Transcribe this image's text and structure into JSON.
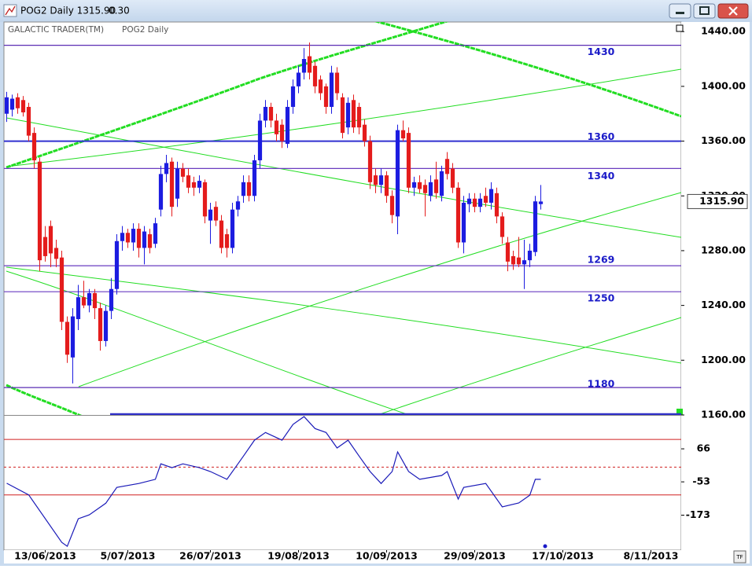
{
  "window": {
    "title": "POG2 Daily 1315.90",
    "change": "0.30"
  },
  "chart_data": {
    "type": "candlestick",
    "header": "GALACTIC TRADER(TM)",
    "symbol": "POG2 Daily",
    "last_price": {
      "value": 1315.9,
      "label": "1315.90"
    },
    "up_color": "#1c1ce0",
    "down_color": "#e41c1c",
    "candles": [
      [
        1380,
        1396,
        1374,
        1392
      ],
      [
        1383,
        1394,
        1378,
        1391
      ],
      [
        1392,
        1395,
        1380,
        1384
      ],
      [
        1390,
        1393,
        1378,
        1381
      ],
      [
        1385,
        1388,
        1360,
        1364
      ],
      [
        1366,
        1370,
        1340,
        1346
      ],
      [
        1345,
        1348,
        1265,
        1273
      ],
      [
        1290,
        1298,
        1272,
        1276
      ],
      [
        1298,
        1302,
        1268,
        1278
      ],
      [
        1282,
        1288,
        1268,
        1274
      ],
      [
        1275,
        1280,
        1222,
        1228
      ],
      [
        1228,
        1232,
        1198,
        1204
      ],
      [
        1202,
        1238,
        1183,
        1232
      ],
      [
        1230,
        1255,
        1222,
        1246
      ],
      [
        1246,
        1258,
        1238,
        1240
      ],
      [
        1240,
        1252,
        1235,
        1249
      ],
      [
        1249,
        1252,
        1230,
        1238
      ],
      [
        1238,
        1242,
        1207,
        1214
      ],
      [
        1214,
        1240,
        1210,
        1236
      ],
      [
        1236,
        1260,
        1230,
        1252
      ],
      [
        1252,
        1292,
        1248,
        1287
      ],
      [
        1287,
        1298,
        1280,
        1293
      ],
      [
        1293,
        1296,
        1282,
        1286
      ],
      [
        1286,
        1300,
        1280,
        1296
      ],
      [
        1296,
        1300,
        1275,
        1282
      ],
      [
        1282,
        1298,
        1270,
        1294
      ],
      [
        1292,
        1296,
        1278,
        1282
      ],
      [
        1285,
        1304,
        1282,
        1300
      ],
      [
        1310,
        1342,
        1305,
        1336
      ],
      [
        1336,
        1350,
        1330,
        1344
      ],
      [
        1345,
        1348,
        1305,
        1312
      ],
      [
        1318,
        1345,
        1312,
        1340
      ],
      [
        1340,
        1344,
        1330,
        1334
      ],
      [
        1335,
        1340,
        1322,
        1326
      ],
      [
        1330,
        1334,
        1320,
        1326
      ],
      [
        1326,
        1335,
        1322,
        1331
      ],
      [
        1330,
        1332,
        1300,
        1305
      ],
      [
        1302,
        1315,
        1285,
        1310
      ],
      [
        1312,
        1316,
        1298,
        1302
      ],
      [
        1302,
        1306,
        1278,
        1282
      ],
      [
        1292,
        1296,
        1275,
        1282
      ],
      [
        1282,
        1315,
        1278,
        1310
      ],
      [
        1310,
        1320,
        1305,
        1316
      ],
      [
        1320,
        1335,
        1315,
        1330
      ],
      [
        1330,
        1335,
        1316,
        1320
      ],
      [
        1320,
        1350,
        1316,
        1346
      ],
      [
        1346,
        1380,
        1340,
        1375
      ],
      [
        1375,
        1390,
        1370,
        1385
      ],
      [
        1385,
        1388,
        1370,
        1375
      ],
      [
        1375,
        1380,
        1360,
        1365
      ],
      [
        1372,
        1376,
        1355,
        1360
      ],
      [
        1358,
        1390,
        1355,
        1385
      ],
      [
        1385,
        1405,
        1380,
        1400
      ],
      [
        1400,
        1415,
        1395,
        1410
      ],
      [
        1410,
        1428,
        1405,
        1420
      ],
      [
        1422,
        1432,
        1405,
        1410
      ],
      [
        1415,
        1418,
        1395,
        1400
      ],
      [
        1405,
        1408,
        1390,
        1395
      ],
      [
        1400,
        1402,
        1380,
        1385
      ],
      [
        1385,
        1415,
        1380,
        1410
      ],
      [
        1410,
        1414,
        1390,
        1395
      ],
      [
        1392,
        1395,
        1362,
        1366
      ],
      [
        1370,
        1392,
        1365,
        1388
      ],
      [
        1390,
        1394,
        1366,
        1370
      ],
      [
        1385,
        1388,
        1365,
        1370
      ],
      [
        1372,
        1376,
        1356,
        1360
      ],
      [
        1360,
        1364,
        1325,
        1330
      ],
      [
        1335,
        1340,
        1322,
        1328
      ],
      [
        1328,
        1340,
        1322,
        1335
      ],
      [
        1335,
        1338,
        1315,
        1320
      ],
      [
        1320,
        1324,
        1300,
        1306
      ],
      [
        1305,
        1372,
        1292,
        1368
      ],
      [
        1368,
        1375,
        1360,
        1362
      ],
      [
        1366,
        1370,
        1322,
        1326
      ],
      [
        1326,
        1334,
        1320,
        1330
      ],
      [
        1330,
        1335,
        1322,
        1325
      ],
      [
        1328,
        1332,
        1305,
        1322
      ],
      [
        1320,
        1335,
        1316,
        1330
      ],
      [
        1332,
        1345,
        1318,
        1322
      ],
      [
        1320,
        1342,
        1316,
        1338
      ],
      [
        1347,
        1352,
        1332,
        1336
      ],
      [
        1340,
        1344,
        1322,
        1326
      ],
      [
        1326,
        1330,
        1282,
        1286
      ],
      [
        1286,
        1320,
        1278,
        1315
      ],
      [
        1314,
        1322,
        1308,
        1318
      ],
      [
        1318,
        1322,
        1308,
        1312
      ],
      [
        1312,
        1322,
        1308,
        1318
      ],
      [
        1320,
        1326,
        1312,
        1315
      ],
      [
        1315,
        1330,
        1310,
        1325
      ],
      [
        1322,
        1326,
        1300,
        1305
      ],
      [
        1305,
        1308,
        1285,
        1290
      ],
      [
        1286,
        1290,
        1265,
        1272
      ],
      [
        1276,
        1280,
        1266,
        1270
      ],
      [
        1275,
        1290,
        1268,
        1270
      ],
      [
        1270,
        1288,
        1252,
        1273
      ],
      [
        1273,
        1285,
        1268,
        1280
      ],
      [
        1279,
        1320,
        1276,
        1316
      ],
      [
        1314,
        1328,
        1310,
        1315.9
      ]
    ],
    "xlim": [
      -0.5,
      122.5
    ],
    "xticks": [
      {
        "value": 7,
        "label": "13/06/2013"
      },
      {
        "value": 22,
        "label": "5/07/2013"
      },
      {
        "value": 37,
        "label": "26/07/2013"
      },
      {
        "value": 53,
        "label": "19/08/2013"
      },
      {
        "value": 69,
        "label": "10/09/2013"
      },
      {
        "value": 85,
        "label": "29/09/2013"
      },
      {
        "value": 101,
        "label": "17/10/2013"
      },
      {
        "value": 117,
        "label": "8/11/2013"
      }
    ],
    "ylim": [
      1160,
      1447
    ],
    "yticks": [
      {
        "value": 1160,
        "label": "1160.00"
      },
      {
        "value": 1200,
        "label": "1200.00"
      },
      {
        "value": 1240,
        "label": "1240.00"
      },
      {
        "value": 1280,
        "label": "1280.00"
      },
      {
        "value": 1320,
        "label": "1320.00"
      },
      {
        "value": 1360,
        "label": "1360.00"
      },
      {
        "value": 1400,
        "label": "1400.00"
      },
      {
        "value": 1440,
        "label": "1440.00"
      }
    ],
    "levels": [
      1430,
      1360,
      1340,
      1269,
      1250,
      1180
    ],
    "level_colors": [
      "#5a2db4",
      "#3030d0",
      "#6a3cc0",
      "#6a3cc0",
      "#6a3cc0",
      "#5a2db4"
    ],
    "oscillator": {
      "type": "line",
      "color": "#1a1ab8",
      "x": [
        0,
        4,
        10,
        11,
        13,
        15,
        18,
        20,
        24,
        27,
        28,
        30,
        32,
        35,
        37,
        40,
        42,
        43,
        45,
        47,
        50,
        52,
        54,
        56,
        58,
        60,
        62,
        64,
        66,
        68,
        70,
        71,
        73,
        75,
        79,
        80,
        82,
        83,
        87,
        90,
        93,
        95,
        96,
        97
      ],
      "values": [
        -58,
        -100,
        -271,
        -285,
        -186,
        -172,
        -130,
        -73,
        -59,
        -44,
        12,
        -2,
        12,
        -2,
        -16,
        -44,
        12,
        40,
        97,
        125,
        97,
        154,
        182,
        139,
        125,
        69,
        97,
        40,
        -16,
        -59,
        -16,
        55,
        -16,
        -44,
        -30,
        -16,
        -115,
        -73,
        -59,
        -143,
        -129,
        -101,
        -44,
        -44
      ],
      "ylim": [
        -299,
        188
      ],
      "yticks": [
        66,
        -53,
        -173
      ],
      "levels": [
        100,
        0,
        -100
      ],
      "level_color": "#d02020"
    }
  }
}
